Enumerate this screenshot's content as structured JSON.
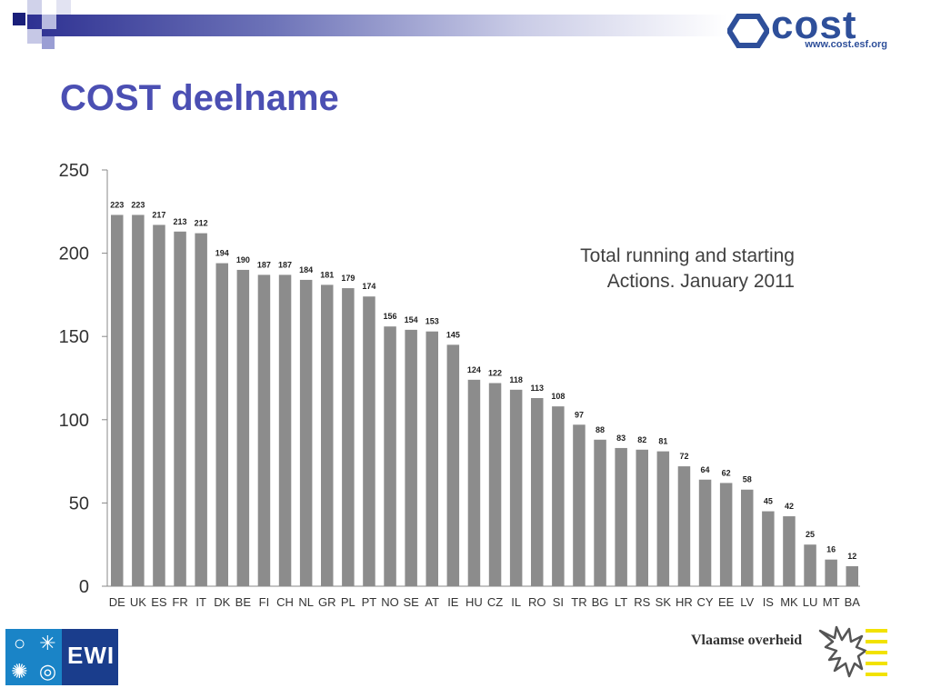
{
  "header": {
    "title": "COST deelname",
    "logo_text": "cost",
    "logo_url": "www.cost.esf.org"
  },
  "annotation": {
    "line1": "Total running and starting",
    "line2": "Actions. January 2011"
  },
  "footer": {
    "ewi_text": "EWI",
    "vlaamse_text": "Vlaamse overheid"
  },
  "colors": {
    "bar": "#8c8c8c",
    "title": "#4b4fb3",
    "brand_blue": "#2e4f9a"
  },
  "chart_data": {
    "type": "bar",
    "title": "",
    "xlabel": "",
    "ylabel": "",
    "ylim": [
      0,
      250
    ],
    "yticks": [
      0,
      50,
      100,
      150,
      200,
      250
    ],
    "grid": false,
    "categories": [
      "DE",
      "UK",
      "ES",
      "FR",
      "IT",
      "DK",
      "BE",
      "FI",
      "CH",
      "NL",
      "GR",
      "PL",
      "PT",
      "NO",
      "SE",
      "AT",
      "IE",
      "HU",
      "CZ",
      "IL",
      "RO",
      "SI",
      "TR",
      "BG",
      "LT",
      "RS",
      "SK",
      "HR",
      "CY",
      "EE",
      "LV",
      "IS",
      "MK",
      "LU",
      "MT",
      "BA"
    ],
    "values": [
      223,
      223,
      217,
      213,
      212,
      194,
      190,
      187,
      187,
      184,
      181,
      179,
      174,
      156,
      154,
      153,
      145,
      124,
      122,
      118,
      113,
      108,
      97,
      88,
      83,
      82,
      81,
      72,
      64,
      62,
      58,
      45,
      42,
      25,
      16,
      12
    ]
  }
}
